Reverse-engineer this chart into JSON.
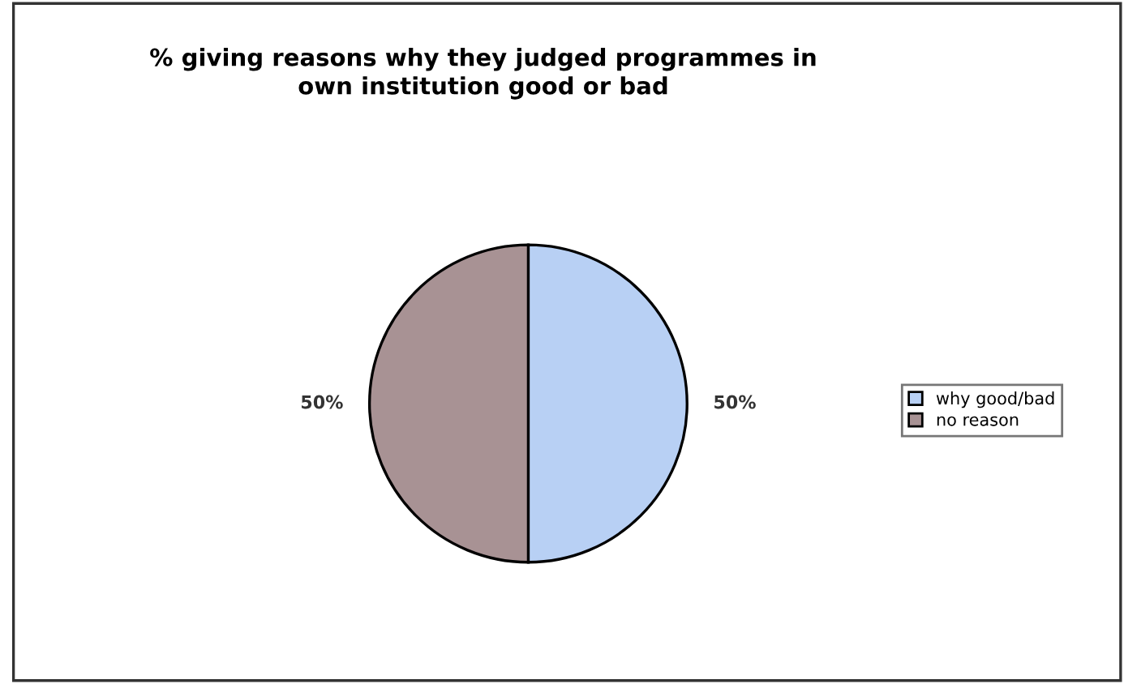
{
  "chart_data": {
    "type": "pie",
    "title": "% giving reasons why they judged programmes in\nown institution good or bad",
    "categories": [
      "why good/bad",
      "no reason"
    ],
    "values": [
      50,
      50
    ],
    "colors": [
      "#b8d0f4",
      "#a89294"
    ],
    "value_labels": [
      "50%",
      "50%"
    ],
    "legend": "right"
  }
}
